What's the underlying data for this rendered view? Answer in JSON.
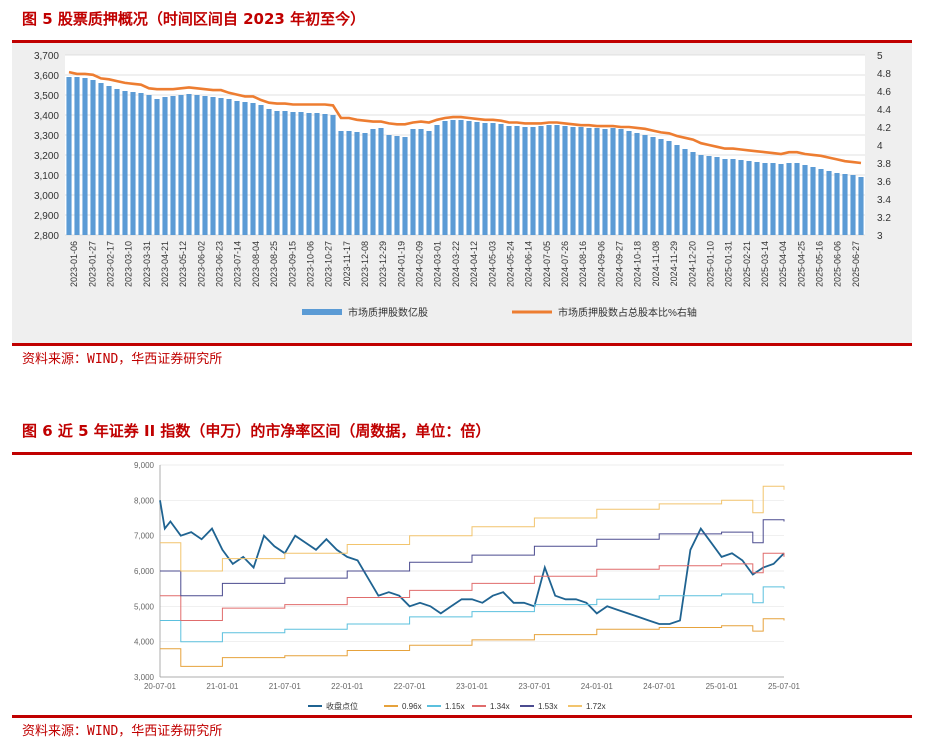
{
  "figure1": {
    "title": "图 5   股票质押概况（时间区间自 2023 年初至今）",
    "source": "资料来源：WIND，华西证券研究所"
  },
  "figure2": {
    "title": "图 6   近 5 年证券 II 指数（申万）的市净率区间（周数据，单位：倍）",
    "source": "资料来源：WIND，华西证券研究所"
  },
  "colors": {
    "accent_red": "#c00000",
    "bar_blue": "#5b9bd5",
    "line_orange": "#ed7d31",
    "close_blue": "#1f6391",
    "band_096": "#e6a23c",
    "band_115": "#5bc0de",
    "band_134": "#e06c6c",
    "band_153": "#4b4b8f",
    "band_172": "#f2c46d"
  },
  "chart_data": [
    {
      "type": "bar",
      "title": "",
      "y_left": {
        "min": 2800,
        "max": 3700,
        "step": 100,
        "ticks": [
          "2,800",
          "2,900",
          "3,000",
          "3,100",
          "3,200",
          "3,300",
          "3,400",
          "3,500",
          "3,600",
          "3,700"
        ]
      },
      "y_right": {
        "min": 3,
        "max": 5,
        "step": 0.2,
        "ticks": [
          "3",
          "3.2",
          "3.4",
          "3.6",
          "3.8",
          "4",
          "4.2",
          "4.4",
          "4.6",
          "4.8",
          "5"
        ]
      },
      "x_tick_labels": [
        "2023-01-06",
        "2023-01-27",
        "2023-02-17",
        "2023-03-10",
        "2023-03-31",
        "2023-04-21",
        "2023-05-12",
        "2023-06-02",
        "2023-06-23",
        "2023-07-14",
        "2023-08-04",
        "2023-08-25",
        "2023-09-15",
        "2023-10-06",
        "2023-10-27",
        "2023-11-17",
        "2023-12-08",
        "2023-12-29",
        "2024-01-19",
        "2024-02-09",
        "2024-03-01",
        "2024-03-22",
        "2024-04-12",
        "2024-05-03",
        "2024-05-24",
        "2024-06-14",
        "2024-07-05",
        "2024-07-26",
        "2024-08-16",
        "2024-09-06",
        "2024-09-27",
        "2024-10-18",
        "2024-11-08",
        "2024-11-29",
        "2024-12-20",
        "2025-01-10",
        "2025-01-31",
        "2025-02-21",
        "2025-03-14",
        "2025-04-04",
        "2025-04-25",
        "2025-05-16",
        "2025-06-06",
        "2025-06-27"
      ],
      "legend": [
        "市场质押股数亿股",
        "市场质押股数占总股本比%右轴"
      ],
      "legend_position": "bottom",
      "series": [
        {
          "name": "市场质押股数亿股",
          "axis": "left",
          "values": [
            3590,
            3590,
            3585,
            3575,
            3560,
            3545,
            3530,
            3520,
            3515,
            3510,
            3500,
            3480,
            3490,
            3495,
            3500,
            3505,
            3500,
            3495,
            3490,
            3485,
            3480,
            3470,
            3465,
            3460,
            3450,
            3430,
            3420,
            3420,
            3415,
            3415,
            3410,
            3410,
            3405,
            3400,
            3320,
            3320,
            3315,
            3310,
            3330,
            3335,
            3300,
            3295,
            3290,
            3330,
            3330,
            3320,
            3350,
            3370,
            3375,
            3375,
            3370,
            3365,
            3360,
            3360,
            3355,
            3345,
            3345,
            3340,
            3340,
            3345,
            3350,
            3350,
            3345,
            3340,
            3340,
            3335,
            3335,
            3330,
            3335,
            3330,
            3320,
            3310,
            3300,
            3290,
            3280,
            3270,
            3250,
            3230,
            3215,
            3200,
            3195,
            3190,
            3180,
            3180,
            3175,
            3170,
            3165,
            3160,
            3160,
            3155,
            3160,
            3160,
            3150,
            3140,
            3130,
            3120,
            3110,
            3105,
            3100,
            3090
          ]
        },
        {
          "name": "市场质押股数占总股本比%右轴",
          "axis": "right",
          "values": [
            4.81,
            4.79,
            4.79,
            4.78,
            4.74,
            4.73,
            4.71,
            4.69,
            4.68,
            4.67,
            4.63,
            4.62,
            4.62,
            4.62,
            4.63,
            4.64,
            4.63,
            4.62,
            4.61,
            4.61,
            4.58,
            4.56,
            4.54,
            4.54,
            4.5,
            4.47,
            4.46,
            4.46,
            4.45,
            4.45,
            4.45,
            4.45,
            4.45,
            4.44,
            4.3,
            4.3,
            4.28,
            4.27,
            4.26,
            4.26,
            4.24,
            4.23,
            4.23,
            4.25,
            4.26,
            4.25,
            4.28,
            4.3,
            4.31,
            4.31,
            4.3,
            4.29,
            4.28,
            4.28,
            4.27,
            4.25,
            4.25,
            4.24,
            4.24,
            4.24,
            4.25,
            4.25,
            4.24,
            4.23,
            4.22,
            4.22,
            4.21,
            4.21,
            4.21,
            4.2,
            4.2,
            4.19,
            4.18,
            4.16,
            4.14,
            4.13,
            4.1,
            4.08,
            4.06,
            4.02,
            4.0,
            3.98,
            3.96,
            3.96,
            3.95,
            3.94,
            3.93,
            3.92,
            3.91,
            3.9,
            3.92,
            3.92,
            3.9,
            3.89,
            3.88,
            3.86,
            3.84,
            3.82,
            3.81,
            3.8
          ]
        }
      ]
    },
    {
      "type": "line",
      "title": "",
      "y_axis": {
        "min": 3000,
        "max": 9000,
        "step": 1000,
        "ticks": [
          "3,000",
          "4,000",
          "5,000",
          "6,000",
          "7,000",
          "8,000",
          "9,000"
        ]
      },
      "x_axis": {
        "start": "20-07-01",
        "end": "25-07-01"
      },
      "x_tick_labels": [
        "20-07-01",
        "21-01-01",
        "21-07-01",
        "22-01-01",
        "22-07-01",
        "23-01-01",
        "23-07-01",
        "24-01-01",
        "24-07-01",
        "25-01-01",
        "25-07-01"
      ],
      "legend": [
        "收盘点位",
        "0.96x",
        "1.15x",
        "1.34x",
        "1.53x",
        "1.72x"
      ],
      "legend_position": "bottom",
      "series": [
        {
          "name": "收盘点位",
          "x": [
            "20-07-01",
            "20-07-15",
            "20-08-01",
            "20-09-01",
            "20-10-01",
            "20-11-01",
            "20-12-01",
            "21-01-01",
            "21-02-01",
            "21-03-01",
            "21-04-01",
            "21-05-01",
            "21-06-01",
            "21-07-01",
            "21-08-01",
            "21-09-01",
            "21-10-01",
            "21-11-01",
            "21-12-01",
            "22-01-01",
            "22-02-01",
            "22-03-01",
            "22-04-01",
            "22-05-01",
            "22-06-01",
            "22-07-01",
            "22-08-01",
            "22-09-01",
            "22-10-01",
            "22-11-01",
            "22-12-01",
            "23-01-01",
            "23-02-01",
            "23-03-01",
            "23-04-01",
            "23-05-01",
            "23-06-01",
            "23-07-01",
            "23-08-01",
            "23-09-01",
            "23-10-01",
            "23-11-01",
            "23-12-01",
            "24-01-01",
            "24-02-01",
            "24-03-01",
            "24-04-01",
            "24-05-01",
            "24-06-01",
            "24-07-01",
            "24-08-01",
            "24-09-01",
            "24-10-01",
            "24-11-01",
            "24-12-01",
            "25-01-01",
            "25-02-01",
            "25-03-01",
            "25-04-01",
            "25-05-01",
            "25-06-01",
            "25-07-01"
          ],
          "values": [
            8000,
            7200,
            7400,
            7000,
            7100,
            6900,
            7200,
            6600,
            6200,
            6400,
            6100,
            7000,
            6700,
            6500,
            7000,
            6800,
            6600,
            6900,
            6600,
            6400,
            6300,
            5800,
            5300,
            5400,
            5300,
            5000,
            5100,
            5000,
            4800,
            5000,
            5200,
            5200,
            5100,
            5300,
            5400,
            5100,
            5100,
            5000,
            6100,
            5300,
            5200,
            5200,
            5100,
            4800,
            5000,
            4900,
            4800,
            4700,
            4600,
            4500,
            4500,
            4600,
            6600,
            7200,
            6800,
            6400,
            6500,
            6300,
            5900,
            6100,
            6200,
            6500
          ]
        },
        {
          "name": "0.96x",
          "x": [
            "20-07-01",
            "20-09-01",
            "21-01-01",
            "21-07-01",
            "22-01-01",
            "22-07-01",
            "23-01-01",
            "23-07-01",
            "24-01-01",
            "24-07-01",
            "25-01-01",
            "25-04-01",
            "25-05-01",
            "25-07-01"
          ],
          "values": [
            3800,
            3300,
            3550,
            3600,
            3750,
            3900,
            4050,
            4200,
            4350,
            4400,
            4450,
            4300,
            4650,
            4600
          ]
        },
        {
          "name": "1.15x",
          "x": [
            "20-07-01",
            "20-09-01",
            "21-01-01",
            "21-07-01",
            "22-01-01",
            "22-07-01",
            "23-01-01",
            "23-07-01",
            "24-01-01",
            "24-07-01",
            "25-01-01",
            "25-04-01",
            "25-05-01",
            "25-07-01"
          ],
          "values": [
            4600,
            4000,
            4250,
            4350,
            4500,
            4700,
            4850,
            5050,
            5200,
            5300,
            5350,
            5100,
            5550,
            5500
          ]
        },
        {
          "name": "1.34x",
          "x": [
            "20-07-01",
            "20-09-01",
            "21-01-01",
            "21-07-01",
            "22-01-01",
            "22-07-01",
            "23-01-01",
            "23-07-01",
            "24-01-01",
            "24-07-01",
            "25-01-01",
            "25-04-01",
            "25-05-01",
            "25-07-01"
          ],
          "values": [
            5300,
            4600,
            4950,
            5050,
            5250,
            5450,
            5650,
            5850,
            6050,
            6150,
            6200,
            5950,
            6500,
            6400
          ]
        },
        {
          "name": "1.53x",
          "x": [
            "20-07-01",
            "20-09-01",
            "21-01-01",
            "21-07-01",
            "22-01-01",
            "22-07-01",
            "23-01-01",
            "23-07-01",
            "24-01-01",
            "24-07-01",
            "25-01-01",
            "25-04-01",
            "25-05-01",
            "25-07-01"
          ],
          "values": [
            6000,
            5300,
            5650,
            5800,
            6000,
            6250,
            6450,
            6700,
            6900,
            7050,
            7100,
            6800,
            7450,
            7400
          ]
        },
        {
          "name": "1.72x",
          "x": [
            "20-07-01",
            "20-09-01",
            "21-01-01",
            "21-07-01",
            "22-01-01",
            "22-07-01",
            "23-01-01",
            "23-07-01",
            "24-01-01",
            "24-07-01",
            "25-01-01",
            "25-04-01",
            "25-05-01",
            "25-07-01"
          ],
          "values": [
            6800,
            6000,
            6350,
            6500,
            6750,
            7000,
            7250,
            7500,
            7750,
            7900,
            8000,
            7650,
            8400,
            8300
          ]
        }
      ]
    }
  ]
}
